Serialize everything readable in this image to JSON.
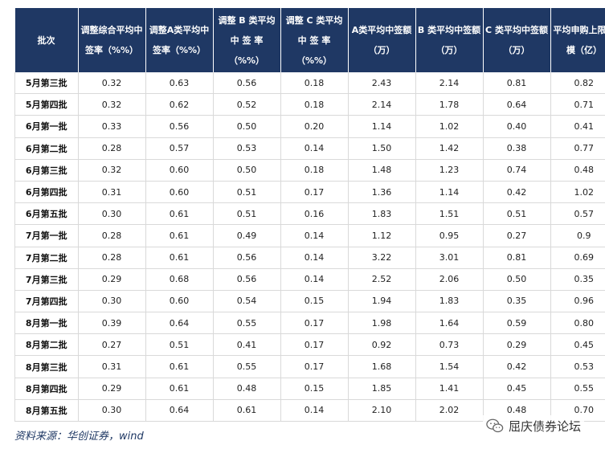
{
  "table": {
    "headers": [
      "批次",
      "调整综合平均中签率（%%）",
      "调整A类平均中签率（%%）",
      "调整 B 类平均 中 签 率（%%）",
      "调整 C 类平均 中 签 率（%%）",
      "A类平均中签额（万）",
      "B 类平均中签额（万）",
      "C 类平均中签额（万）",
      "平均申购上限规模（亿）"
    ],
    "rows": [
      [
        "5月第三批",
        "0.32",
        "0.63",
        "0.56",
        "0.18",
        "2.43",
        "2.14",
        "0.81",
        "0.82"
      ],
      [
        "5月第四批",
        "0.32",
        "0.62",
        "0.52",
        "0.18",
        "2.14",
        "1.78",
        "0.64",
        "0.71"
      ],
      [
        "6月第一批",
        "0.33",
        "0.56",
        "0.50",
        "0.20",
        "1.14",
        "1.02",
        "0.40",
        "0.41"
      ],
      [
        "6月第二批",
        "0.28",
        "0.57",
        "0.53",
        "0.14",
        "1.50",
        "1.42",
        "0.38",
        "0.77"
      ],
      [
        "6月第三批",
        "0.32",
        "0.60",
        "0.50",
        "0.18",
        "1.48",
        "1.23",
        "0.74",
        "0.48"
      ],
      [
        "6月第四批",
        "0.31",
        "0.60",
        "0.51",
        "0.17",
        "1.36",
        "1.14",
        "0.42",
        "1.02"
      ],
      [
        "6月第五批",
        "0.30",
        "0.61",
        "0.51",
        "0.16",
        "1.83",
        "1.51",
        "0.51",
        "0.57"
      ],
      [
        "7月第一批",
        "0.28",
        "0.61",
        "0.49",
        "0.14",
        "1.12",
        "0.95",
        "0.27",
        "0.9"
      ],
      [
        "7月第二批",
        "0.28",
        "0.61",
        "0.56",
        "0.14",
        "3.22",
        "3.01",
        "0.81",
        "0.69"
      ],
      [
        "7月第三批",
        "0.29",
        "0.68",
        "0.56",
        "0.14",
        "2.52",
        "2.06",
        "0.50",
        "0.35"
      ],
      [
        "7月第四批",
        "0.30",
        "0.60",
        "0.54",
        "0.15",
        "1.94",
        "1.83",
        "0.35",
        "0.96"
      ],
      [
        "8月第一批",
        "0.39",
        "0.64",
        "0.55",
        "0.17",
        "1.98",
        "1.64",
        "0.59",
        "0.80"
      ],
      [
        "8月第二批",
        "0.27",
        "0.51",
        "0.41",
        "0.17",
        "0.92",
        "0.73",
        "0.29",
        "0.45"
      ],
      [
        "8月第三批",
        "0.31",
        "0.61",
        "0.55",
        "0.17",
        "1.68",
        "1.54",
        "0.42",
        "0.53"
      ],
      [
        "8月第四批",
        "0.29",
        "0.61",
        "0.48",
        "0.15",
        "1.85",
        "1.41",
        "0.45",
        "0.55"
      ],
      [
        "8月第五批",
        "0.30",
        "0.64",
        "0.61",
        "0.14",
        "2.10",
        "2.02",
        "0.48",
        "0.70"
      ]
    ]
  },
  "source": "资料来源：华创证券，wind",
  "watermark": "屈庆债券论坛"
}
